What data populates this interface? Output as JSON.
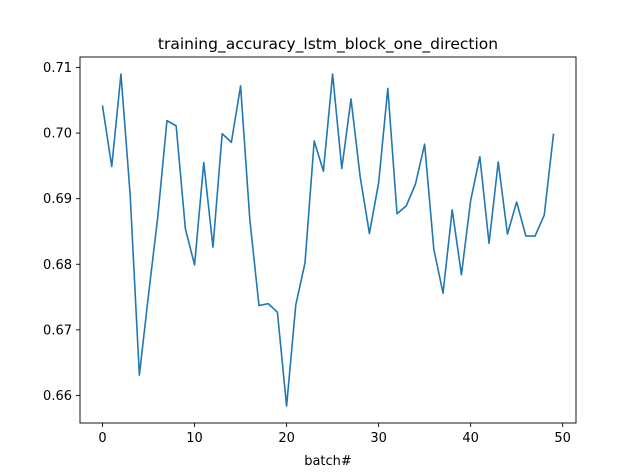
{
  "chart_data": {
    "type": "line",
    "title": "training_accuracy_lstm_block_one_direction",
    "xlabel": "batch#",
    "ylabel": "",
    "xlim": [
      -2.45,
      51.45
    ],
    "ylim": [
      0.6558,
      0.7116
    ],
    "x_ticks": [
      0,
      10,
      20,
      30,
      40,
      50
    ],
    "x_tick_labels": [
      "0",
      "10",
      "20",
      "30",
      "40",
      "50"
    ],
    "y_ticks": [
      0.66,
      0.67,
      0.68,
      0.69,
      0.7,
      0.71
    ],
    "y_tick_labels": [
      "0.66",
      "0.67",
      "0.68",
      "0.69",
      "0.70",
      "0.71"
    ],
    "grid": false,
    "line_color": "#1f77b4",
    "series": [
      {
        "x": [
          0,
          1,
          2,
          3,
          4,
          5,
          6,
          7,
          8,
          9,
          10,
          11,
          12,
          13,
          14,
          15,
          16,
          17,
          18,
          19,
          20,
          21,
          22,
          23,
          24,
          25,
          26,
          27,
          28,
          29,
          30,
          31,
          32,
          33,
          34,
          35,
          36,
          37,
          38,
          39,
          40,
          41,
          42,
          43,
          44,
          45,
          46,
          47,
          48,
          49
        ],
        "values": [
          0.7041,
          0.6949,
          0.709,
          0.6906,
          0.6631,
          0.6754,
          0.6872,
          0.7019,
          0.7011,
          0.6854,
          0.6799,
          0.6955,
          0.6826,
          0.6999,
          0.6986,
          0.7072,
          0.6869,
          0.6737,
          0.674,
          0.6727,
          0.6584,
          0.6738,
          0.6802,
          0.6988,
          0.6942,
          0.709,
          0.6946,
          0.7052,
          0.6933,
          0.6847,
          0.6924,
          0.7068,
          0.6877,
          0.6889,
          0.6922,
          0.6983,
          0.6823,
          0.6756,
          0.6883,
          0.6784,
          0.6897,
          0.6964,
          0.6832,
          0.6956,
          0.6846,
          0.6895,
          0.6843,
          0.6843,
          0.6875,
          0.6998
        ]
      }
    ]
  }
}
